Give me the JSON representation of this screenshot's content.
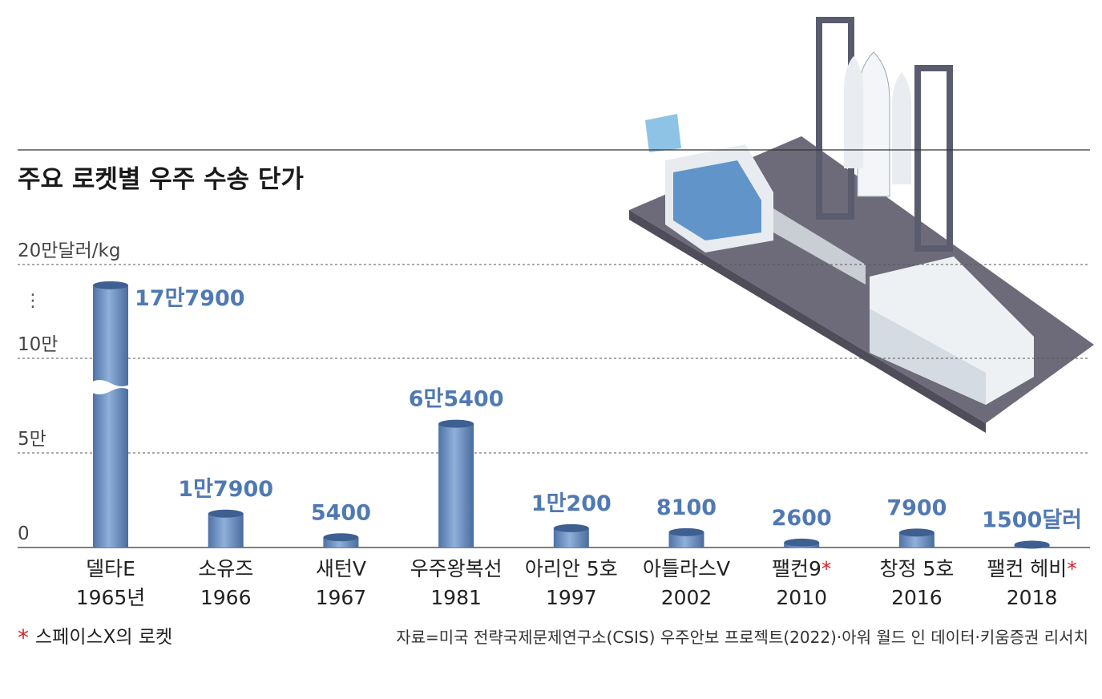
{
  "chart_data": {
    "type": "bar",
    "title": "주요 로켓별 우주 수송 단가",
    "categories": [
      "델타E",
      "소유즈",
      "새턴V",
      "우주왕복선",
      "아리안 5호",
      "아틀라스V",
      "팰컨9",
      "창정 5호",
      "팰컨 헤비"
    ],
    "years": [
      "1965년",
      "1966",
      "1967",
      "1981",
      "1997",
      "2002",
      "2010",
      "2016",
      "2018"
    ],
    "spacex": [
      false,
      false,
      false,
      false,
      false,
      false,
      true,
      false,
      true
    ],
    "marker": "*",
    "values": [
      177900,
      17900,
      5400,
      65400,
      10200,
      8100,
      2600,
      7900,
      1500
    ],
    "value_labels": [
      "17만7900",
      "1만7900",
      "5400",
      "6만5400",
      "1만200",
      "8100",
      "2600",
      "7900",
      "1500달러"
    ],
    "color": "#6b8fc2",
    "label_color": "#5079b3",
    "ylim": [
      0,
      200000
    ],
    "yticks": [
      {
        "value": 0,
        "label": "0"
      },
      {
        "value": 50000,
        "label": "5만"
      },
      {
        "value": 100000,
        "label": "10만"
      },
      {
        "value": 200000,
        "label": "20만달러/kg"
      }
    ],
    "axis_break": true,
    "grid": true,
    "note": "스페이스X의 로켓",
    "source": "자료=미국 전략국제문제연구소(CSIS) 우주안보 프로젝트(2022)·아워 월드 인 데이터·키움증권 리서치"
  }
}
